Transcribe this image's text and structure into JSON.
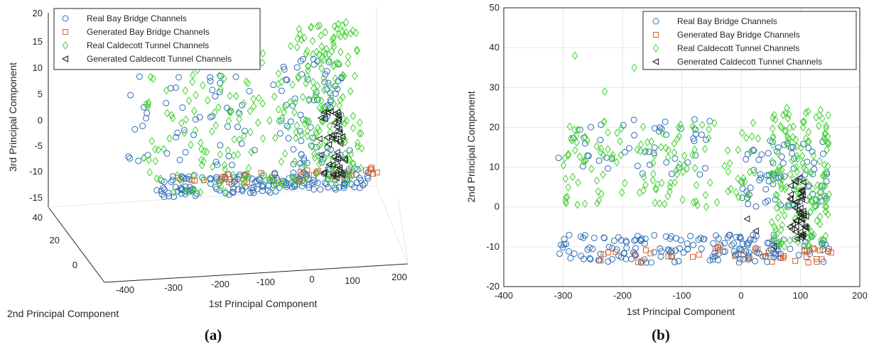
{
  "colors": {
    "bay_real": "#2d6db5",
    "bay_generated": "#d5602a",
    "caldecott_real": "#3fd12f",
    "caldecott_generated": "#1a1a1a"
  },
  "chart_data": [
    {
      "panel_label": "(a)",
      "type": "scatter",
      "projection": "3d",
      "xlabel": "1st Principal Component",
      "ylabel": "2nd Principal Component",
      "zlabel": "3rd Principal Component",
      "xlim": [
        -400,
        200
      ],
      "ylim": [
        0,
        40
      ],
      "zlim": [
        -15,
        20
      ],
      "xticks": [
        "-400",
        "-300",
        "-200",
        "-100",
        "0",
        "100",
        "200"
      ],
      "yticks": [
        "0",
        "20",
        "40"
      ],
      "zticks": [
        "-15",
        "-10",
        "-5",
        "0",
        "5",
        "10",
        "15",
        "20"
      ],
      "legend": [
        "Real Bay Bridge Channels",
        "Generated Bay Bridge Channels",
        "Real Caldecott Tunnel Channels",
        "Generated Caldecott Tunnel Channels"
      ],
      "legend_position": "top-left",
      "series": [
        {
          "name": "Real Bay Bridge Channels",
          "marker": "circle",
          "clusters": [
            {
              "x": [
                -310,
                150
              ],
              "y": [
                -14,
                -7
              ],
              "z_approx": [
                -15,
                -11
              ],
              "count": 180
            },
            {
              "x": [
                0,
                150
              ],
              "y": [
                0,
                17
              ],
              "z_approx": [
                -12,
                10
              ],
              "count": 80
            },
            {
              "x": [
                -310,
                -50
              ],
              "y": [
                8,
                22
              ],
              "z_approx": [
                -10,
                8
              ],
              "count": 50
            }
          ]
        },
        {
          "name": "Generated Bay Bridge Channels",
          "marker": "square",
          "clusters": [
            {
              "x": [
                -270,
                160
              ],
              "y": [
                -14,
                -10
              ],
              "z_approx": [
                -13,
                -11
              ],
              "count": 40
            }
          ]
        },
        {
          "name": "Real Caldecott Tunnel Channels",
          "marker": "diamond",
          "clusters": [
            {
              "x": [
                -300,
                30
              ],
              "y": [
                0,
                22
              ],
              "z_approx": [
                -15,
                12
              ],
              "count": 140
            },
            {
              "x": [
                50,
                150
              ],
              "y": [
                -10,
                25
              ],
              "z_approx": [
                -15,
                17
              ],
              "count": 170
            }
          ]
        },
        {
          "name": "Generated Caldecott Tunnel Channels",
          "marker": "triangle-left",
          "clusters": [
            {
              "x": [
                80,
                110
              ],
              "y": [
                -8,
                8
              ],
              "z_approx": [
                -13,
                0
              ],
              "count": 45
            }
          ]
        }
      ]
    },
    {
      "panel_label": "(b)",
      "type": "scatter",
      "projection": "2d",
      "xlabel": "1st Principal Component",
      "ylabel": "2nd Principal Component",
      "xlim": [
        -400,
        200
      ],
      "ylim": [
        -20,
        50
      ],
      "xticks": [
        "-400",
        "-300",
        "-200",
        "-100",
        "0",
        "100",
        "200"
      ],
      "yticks": [
        "-20",
        "-10",
        "0",
        "10",
        "20",
        "30",
        "40",
        "50"
      ],
      "grid": true,
      "legend": [
        "Real Bay Bridge Channels",
        "Generated Bay Bridge Channels",
        "Real Caldecott Tunnel Channels",
        "Generated Caldecott Tunnel Channels"
      ],
      "legend_position": "top-right",
      "series": [
        {
          "name": "Real Bay Bridge Channels",
          "marker": "circle",
          "clusters": [
            {
              "x": [
                -310,
                150
              ],
              "y": [
                -14,
                -7
              ],
              "count": 180
            },
            {
              "x": [
                0,
                150
              ],
              "y": [
                0,
                17
              ],
              "count": 80
            },
            {
              "x": [
                -310,
                -50
              ],
              "y": [
                8,
                22
              ],
              "count": 50
            }
          ]
        },
        {
          "name": "Generated Bay Bridge Channels",
          "marker": "square",
          "clusters": [
            {
              "x": [
                -270,
                160
              ],
              "y": [
                -14,
                -10
              ],
              "count": 40
            }
          ]
        },
        {
          "name": "Real Caldecott Tunnel Channels",
          "marker": "diamond",
          "clusters": [
            {
              "x": [
                -300,
                30
              ],
              "y": [
                0,
                22
              ],
              "count": 140
            },
            {
              "x": [
                50,
                150
              ],
              "y": [
                -10,
                25
              ],
              "count": 170
            }
          ],
          "outliers": [
            [
              -280,
              38
            ],
            [
              -180,
              35
            ],
            [
              -230,
              29
            ]
          ]
        },
        {
          "name": "Generated Caldecott Tunnel Channels",
          "marker": "triangle-left",
          "clusters": [
            {
              "x": [
                80,
                110
              ],
              "y": [
                -8,
                8
              ],
              "count": 45
            }
          ],
          "outliers": [
            [
              10,
              -3
            ],
            [
              25,
              -6
            ],
            [
              55,
              -10
            ]
          ]
        }
      ]
    }
  ]
}
